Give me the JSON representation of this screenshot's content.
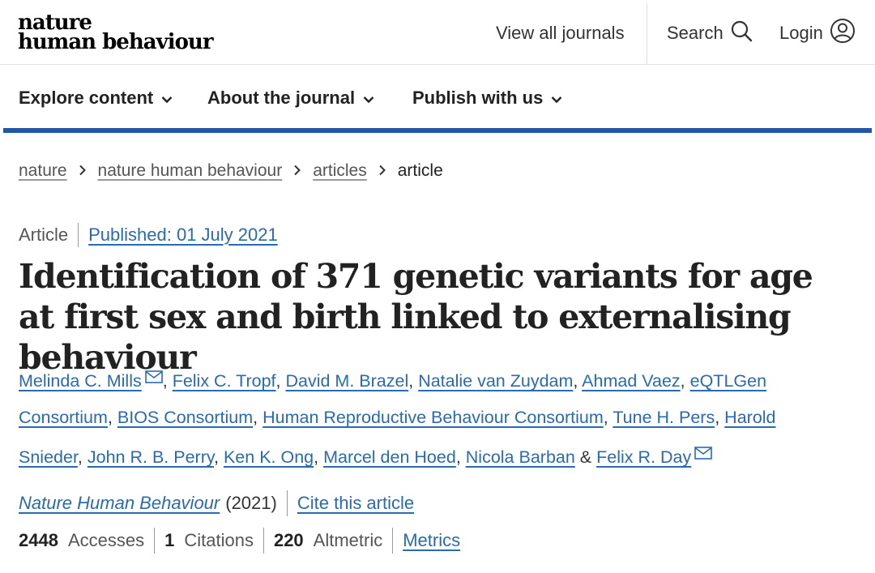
{
  "header": {
    "logo_line1": "nature",
    "logo_line2": "human behaviour",
    "view_all": "View all journals",
    "search": "Search",
    "login": "Login"
  },
  "nav": {
    "items": [
      {
        "label": "Explore content"
      },
      {
        "label": "About the journal"
      },
      {
        "label": "Publish with us"
      }
    ],
    "accent_color": "#2257a6"
  },
  "breadcrumb": {
    "items": [
      "nature",
      "nature human behaviour",
      "articles"
    ],
    "current": "article"
  },
  "article": {
    "type": "Article",
    "published": "Published: 01 July 2021",
    "title": "Identification of 371 genetic variants for age at first sex and birth linked to externalising behaviour",
    "authors": [
      "Melinda C. Mills",
      "Felix C. Tropf",
      "David M. Brazel",
      "Natalie van Zuydam",
      "Ahmad Vaez",
      "eQTLGen Consortium",
      "BIOS Consortium",
      "Human Reproductive Behaviour Consortium",
      "Tune H. Pers",
      "Harold Snieder",
      "John R. B. Perry",
      "Ken K. Ong",
      "Marcel den Hoed",
      "Nicola Barban",
      "Felix R. Day"
    ],
    "ampersand": "&",
    "journal": "Nature Human Behaviour",
    "year": "(2021)",
    "cite": "Cite this article"
  },
  "metrics": {
    "accesses_value": "2448",
    "accesses_label": "Accesses",
    "citations_value": "1",
    "citations_label": "Citations",
    "altmetric_value": "220",
    "altmetric_label": "Altmetric",
    "metrics_link": "Metrics"
  },
  "colors": {
    "link": "#2a6bb0",
    "accent": "#2257a6"
  }
}
